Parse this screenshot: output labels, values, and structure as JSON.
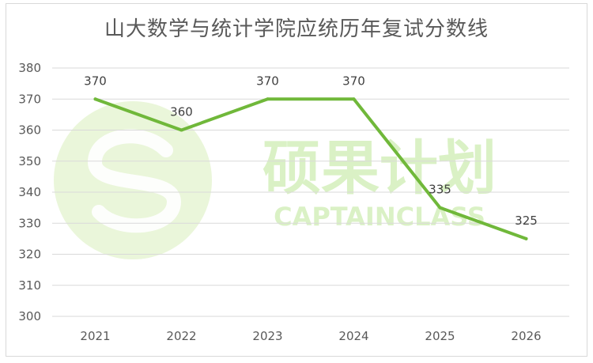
{
  "chart_data": {
    "type": "line",
    "title": "山大数学与统计学院应统历年复试分数线",
    "categories": [
      "2021",
      "2022",
      "2023",
      "2024",
      "2025",
      "2026"
    ],
    "series": [
      {
        "values": [
          370,
          360,
          370,
          370,
          335,
          325
        ]
      }
    ],
    "ylim": [
      300,
      380
    ],
    "yticks": [
      300,
      310,
      320,
      330,
      340,
      350,
      360,
      370,
      380
    ],
    "grid": true,
    "line_color": "#70b83a"
  },
  "watermark": {
    "cn_text": "硕果计划",
    "en_text": "CAPTAINCLASS",
    "color": "#d8f0c0"
  }
}
